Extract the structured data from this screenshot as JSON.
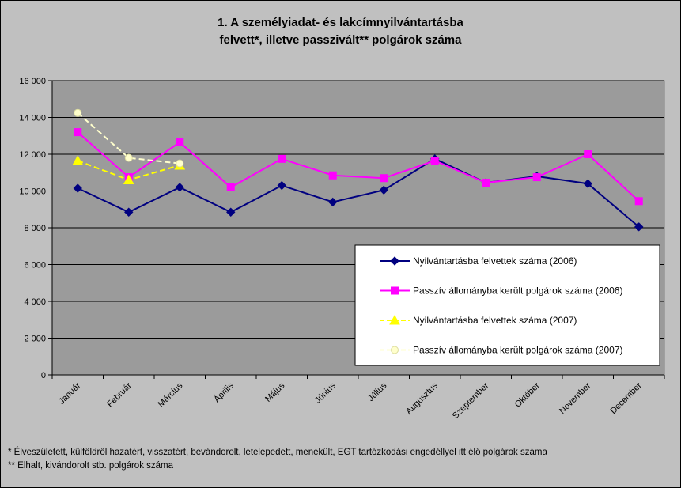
{
  "chart_data": {
    "type": "line",
    "title_line1": "1. A személyiadat- és lakcímnyilvántartásba",
    "title_line2": "felvett*, illetve passzivált** polgárok száma",
    "categories": [
      "Január",
      "Február",
      "Március",
      "Április",
      "Május",
      "Június",
      "Július",
      "Augusztus",
      "Szeptember",
      "Október",
      "November",
      "December"
    ],
    "ylim": [
      0,
      16000
    ],
    "yticks": [
      0,
      2000,
      4000,
      6000,
      8000,
      10000,
      12000,
      14000,
      16000
    ],
    "ytick_labels": [
      "0",
      "2 000",
      "4 000",
      "6 000",
      "8 000",
      "10 000",
      "12 000",
      "14 000",
      "16 000"
    ],
    "grid": true,
    "plot_background": "#9b9b9b",
    "legend_position": "bottom-right",
    "series": [
      {
        "name": "Nyilvántartásba felvettek száma (2006)",
        "color": "#000080",
        "marker": "diamond",
        "dashed": false,
        "values": [
          10150,
          8850,
          10200,
          8850,
          10300,
          9400,
          10050,
          11750,
          10450,
          10800,
          10400,
          8050
        ]
      },
      {
        "name": "Passzív állományba került polgárok száma (2006)",
        "color": "#ff00ff",
        "marker": "square",
        "dashed": false,
        "values": [
          13200,
          10750,
          12650,
          10200,
          11750,
          10850,
          10700,
          11650,
          10450,
          10750,
          12000,
          9450
        ]
      },
      {
        "name": "Nyilvántartásba felvettek száma (2007)",
        "color": "#ffff00",
        "marker": "triangle",
        "dashed": true,
        "values": [
          11650,
          10600,
          11400,
          null,
          null,
          null,
          null,
          null,
          null,
          null,
          null,
          null
        ]
      },
      {
        "name": "Passzív állományba került polgárok száma (2007)",
        "color": "#ffffcc",
        "marker": "circle",
        "dashed": true,
        "values": [
          14250,
          11800,
          11500,
          null,
          null,
          null,
          null,
          null,
          null,
          null,
          null,
          null
        ]
      }
    ]
  },
  "footnotes": {
    "note1": "* Élveszületett, külföldről hazatért, visszatért, bevándorolt, letelepedett, menekült, EGT tartózkodási engedéllyel itt élő  polgárok száma",
    "note2": "** Elhalt, kivándorolt stb. polgárok száma"
  }
}
